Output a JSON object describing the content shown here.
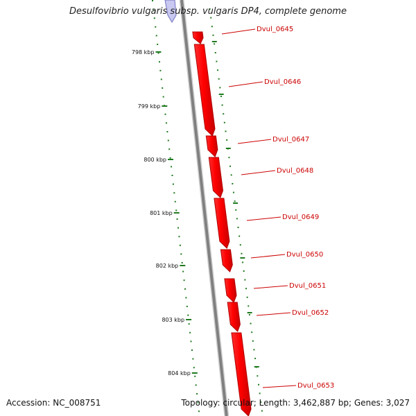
{
  "title": "Desulfovibrio vulgaris subsp. vulgaris DP4, complete genome",
  "footer": {
    "accession": "Accession: NC_008751",
    "summary": "Topology: circular; Length: 3,462,887 bp; Genes: 3,027"
  },
  "colors": {
    "backbone": "#808080",
    "gene_fill": "#ff0000",
    "gene_edge": "#b00000",
    "gene_label": "#cc0000",
    "tick": "#1f7a1f",
    "partial_gene": "#c8c8f0"
  },
  "chart_data": {
    "type": "genome-map",
    "axis_unit": "kbp",
    "ticks": [
      "798 kbp",
      "799 kbp",
      "800 kbp",
      "801 kbp",
      "802 kbp",
      "803 kbp",
      "804 kbp"
    ],
    "genes": [
      {
        "label": "Dvul_0645"
      },
      {
        "label": "Dvul_0646"
      },
      {
        "label": "Dvul_0647"
      },
      {
        "label": "Dvul_0648"
      },
      {
        "label": "Dvul_0649"
      },
      {
        "label": "Dvul_0650"
      },
      {
        "label": "Dvul_0651"
      },
      {
        "label": "Dvul_0652"
      },
      {
        "label": "Dvul_0653"
      }
    ]
  }
}
